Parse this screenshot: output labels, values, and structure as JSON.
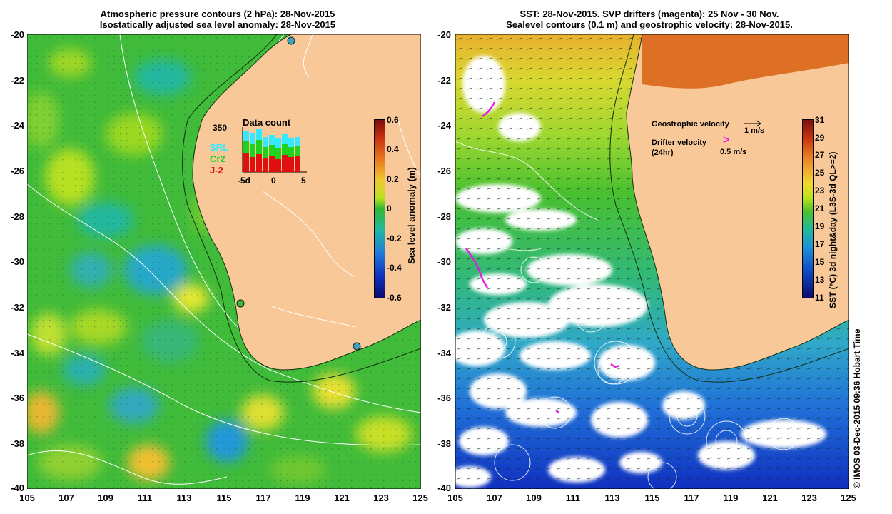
{
  "left_map": {
    "title_line1": "Atmospheric pressure contours (2 hPa): 28-Nov-2015",
    "title_line2": "Isostatically adjusted sea level anomaly: 28-Nov-2015",
    "y_ticks": [
      "-20",
      "-22",
      "-24",
      "-26",
      "-28",
      "-30",
      "-32",
      "-34",
      "-36",
      "-38",
      "-40"
    ],
    "x_ticks": [
      "105",
      "107",
      "109",
      "111",
      "113",
      "115",
      "117",
      "119",
      "121",
      "123",
      "125"
    ],
    "colorbar": {
      "label": "Sea level anomaly (m)",
      "ticks": [
        "0.6",
        "0.4",
        "0.2",
        "0",
        "-0.2",
        "-0.4",
        "-0.6"
      ],
      "min": -0.6,
      "max": 0.6
    },
    "inset": {
      "title": "Data count",
      "ymax_label": "350",
      "x_ticks": [
        "-5d",
        "0",
        "5"
      ],
      "legend": [
        {
          "name": "SRL",
          "color": "#33e8ff"
        },
        {
          "name": "Cr2",
          "color": "#1ed21e"
        },
        {
          "name": "J-2",
          "color": "#e01010"
        }
      ]
    }
  },
  "right_map": {
    "title_line1": "SST: 28-Nov-2015. SVP drifters (magenta): 25 Nov - 30 Nov.",
    "title_line2": "Sealevel contours (0.1 m) and geostrophic velocity: 28-Nov-2015.",
    "y_ticks": [
      "-20",
      "-22",
      "-24",
      "-26",
      "-28",
      "-30",
      "-32",
      "-34",
      "-36",
      "-38",
      "-40"
    ],
    "x_ticks": [
      "105",
      "107",
      "109",
      "111",
      "113",
      "115",
      "117",
      "119",
      "121",
      "123",
      "125"
    ],
    "colorbar": {
      "label": "SST (°C) 3d night&day (L3S-3d QL>=2)",
      "ticks": [
        "31",
        "29",
        "27",
        "25",
        "23",
        "21",
        "19",
        "17",
        "15",
        "13",
        "11"
      ],
      "min": 11,
      "max": 31
    },
    "legend": {
      "geostrophic_label": "Geostrophic velocity",
      "geostrophic_scale": "1 m/s",
      "drifter_label_line1": "Drifter velocity",
      "drifter_label_line2": "(24hr)",
      "drifter_scale": "0.5 m/s"
    }
  },
  "credit": "© IMOS 03-Dec-2015 09:36 Hobart Time",
  "colors": {
    "land": "#f8c898",
    "drifter": "#e020e0",
    "sla_base": "#3cb83c",
    "sst_land_north": "#d86010"
  }
}
